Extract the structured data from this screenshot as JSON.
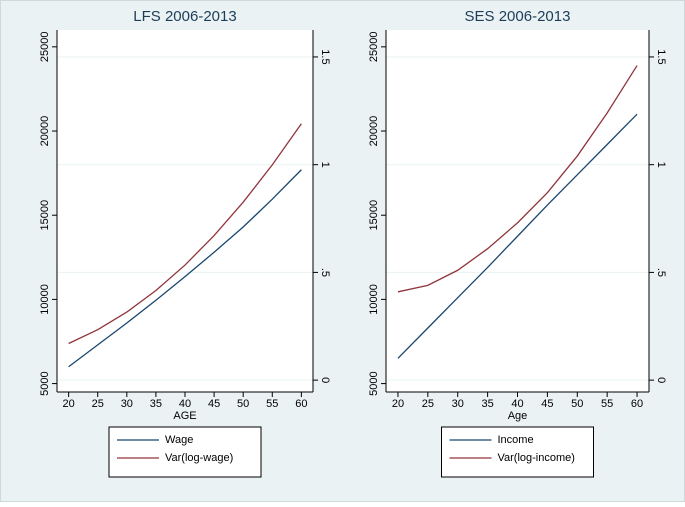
{
  "chart_data": [
    {
      "type": "line",
      "title": "LFS 2006-2013",
      "x_label": "AGE",
      "x": [
        20,
        25,
        30,
        35,
        40,
        45,
        50,
        55,
        60
      ],
      "xlim": [
        18,
        62
      ],
      "xticks": [
        20,
        25,
        30,
        35,
        40,
        45,
        50,
        55,
        60
      ],
      "ylim": [
        4500,
        26000
      ],
      "yticks": [
        5000,
        10000,
        15000,
        20000,
        25000
      ],
      "y2lim": [
        -0.055,
        1.625
      ],
      "y2ticks": [
        0,
        {
          "value": 0.5,
          "label": ".5"
        },
        1,
        1.5
      ],
      "grid": true,
      "legend": "bottom",
      "series": [
        {
          "name": "Wage",
          "color": "#1a476f",
          "values": [
            6000,
            7300,
            8600,
            9950,
            11350,
            12800,
            14300,
            15950,
            17700
          ]
        },
        {
          "name": "Var(log-wage)",
          "color": "#90353b",
          "axis": "y2",
          "values": [
            0.17,
            0.234,
            0.316,
            0.416,
            0.534,
            0.671,
            0.826,
            0.999,
            1.19
          ]
        }
      ]
    },
    {
      "type": "line",
      "title": "SES 2006-2013",
      "x_label": "Age",
      "x": [
        20,
        25,
        30,
        35,
        40,
        45,
        50,
        55,
        60
      ],
      "xlim": [
        18,
        62
      ],
      "xticks": [
        20,
        25,
        30,
        35,
        40,
        45,
        50,
        55,
        60
      ],
      "ylim": [
        4500,
        26000
      ],
      "yticks": [
        5000,
        10000,
        15000,
        20000,
        25000
      ],
      "y2lim": [
        -0.055,
        1.625
      ],
      "y2ticks": [
        0,
        {
          "value": 0.5,
          "label": ".5"
        },
        1,
        1.5
      ],
      "grid": true,
      "legend": "bottom",
      "series": [
        {
          "name": "Income",
          "color": "#1a476f",
          "values": [
            6500,
            8300,
            10100,
            11900,
            13750,
            15600,
            17400,
            19200,
            21000
          ]
        },
        {
          "name": "Var(log-income)",
          "color": "#90353b",
          "axis": "y2",
          "values": [
            0.41,
            0.44,
            0.51,
            0.61,
            0.73,
            0.87,
            1.04,
            1.24,
            1.46
          ]
        }
      ]
    }
  ]
}
